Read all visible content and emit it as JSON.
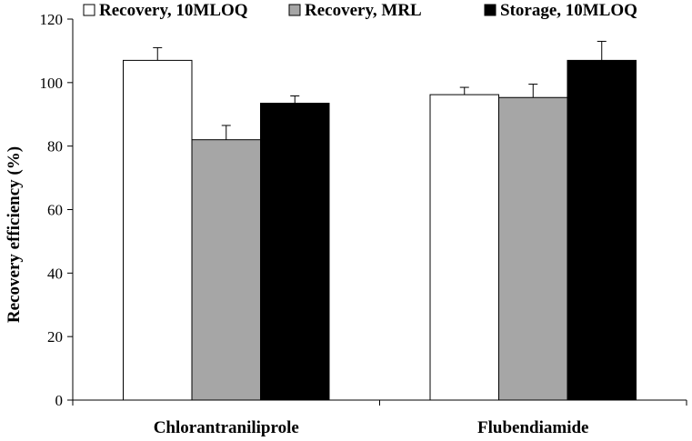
{
  "chart_data": {
    "type": "bar",
    "categories": [
      "Chlorantraniliprole",
      "Flubendiamide"
    ],
    "series": [
      {
        "name": "Recovery, 10MLOQ",
        "values": [
          107,
          96.2
        ],
        "errors": [
          4,
          2.3
        ],
        "color": "#ffffff"
      },
      {
        "name": "Recovery, MRL",
        "values": [
          82,
          95.3
        ],
        "errors": [
          4.5,
          4.2
        ],
        "color": "#a6a6a6"
      },
      {
        "name": "Storage, 10MLOQ",
        "values": [
          93.5,
          107
        ],
        "errors": [
          2.3,
          6
        ],
        "color": "#000000"
      }
    ],
    "ylabel": "Recovery efficiency  (%)",
    "xlabel": "",
    "ylim": [
      0,
      120
    ],
    "yticks": [
      0,
      20,
      40,
      60,
      80,
      100,
      120
    ],
    "ytick_labels": [
      "0",
      "20",
      "40",
      "60",
      "80",
      "100",
      "120"
    ],
    "legend_position": "top",
    "grid": false
  }
}
